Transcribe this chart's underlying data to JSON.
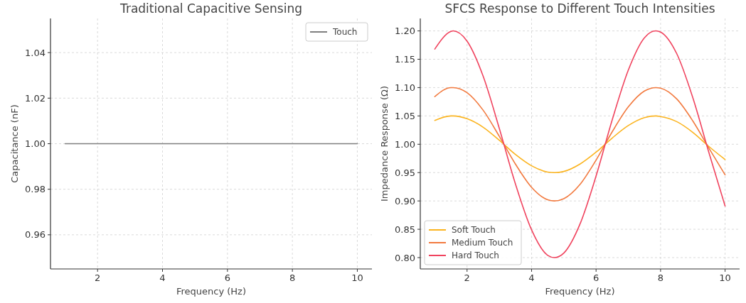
{
  "chart_data": [
    {
      "type": "line",
      "title": "Traditional Capacitive Sensing",
      "xlabel": "Frequency (Hz)",
      "ylabel": "Capacitance (nF)",
      "x": [
        1,
        10
      ],
      "xlim": [
        0.55,
        10.45
      ],
      "xticks": [
        2,
        4,
        6,
        8,
        10
      ],
      "ylim": [
        0.945,
        1.055
      ],
      "yticks": [
        0.96,
        0.98,
        {
          "value": 1,
          "label": "1.00"
        },
        1.02,
        1.04
      ],
      "grid": true,
      "legend": "top right",
      "series": [
        {
          "name": "Touch",
          "color": "#7f7f7f",
          "values": [
            1.0,
            1.0
          ]
        }
      ]
    },
    {
      "type": "line",
      "title": "SFCS Response to Different Touch Intensities",
      "xlabel": "Frequency (Hz)",
      "ylabel": "Impedance Response (Ω)",
      "x": [
        1,
        1.5,
        1.571,
        2,
        2.5,
        3,
        3.5,
        4,
        4.5,
        4.712,
        5,
        5.5,
        6,
        6.5,
        7,
        7.5,
        7.854,
        8,
        8.5,
        9,
        9.5,
        10
      ],
      "xlim": [
        0.55,
        10.45
      ],
      "xticks": [
        2,
        4,
        6,
        8,
        10
      ],
      "ylim": [
        0.78,
        1.222
      ],
      "yticks": [
        {
          "value": 0.8,
          "label": "0.80"
        },
        0.85,
        {
          "value": 0.9,
          "label": "0.90"
        },
        0.95,
        {
          "value": 1,
          "label": "1.00"
        },
        1.05,
        {
          "value": 1.1,
          "label": "1.10"
        },
        1.15,
        {
          "value": 1.2,
          "label": "1.20"
        }
      ],
      "grid": true,
      "legend": "bottom left",
      "series": [
        {
          "name": "Soft Touch",
          "color": "#fbb41f",
          "values": [
            1.042,
            1.05,
            1.05,
            1.045,
            1.03,
            1.007,
            0.982,
            0.962,
            0.951,
            0.95,
            0.952,
            0.965,
            0.986,
            1.011,
            1.033,
            1.047,
            1.05,
            1.049,
            1.04,
            1.021,
            0.996,
            0.973
          ]
        },
        {
          "name": "Medium Touch",
          "color": "#f27a3f",
          "values": [
            1.084,
            1.1,
            1.1,
            1.091,
            1.06,
            1.014,
            0.965,
            0.924,
            0.902,
            0.9,
            0.904,
            0.929,
            0.972,
            1.022,
            1.066,
            1.094,
            1.1,
            1.099,
            1.08,
            1.041,
            0.993,
            0.946
          ]
        },
        {
          "name": "Hard Touch",
          "color": "#f0435e",
          "values": [
            1.168,
            1.199,
            1.2,
            1.182,
            1.12,
            1.028,
            0.93,
            0.849,
            0.804,
            0.8,
            0.808,
            0.859,
            0.944,
            1.043,
            1.131,
            1.188,
            1.2,
            1.198,
            1.16,
            1.082,
            0.985,
            0.891
          ]
        }
      ]
    }
  ]
}
